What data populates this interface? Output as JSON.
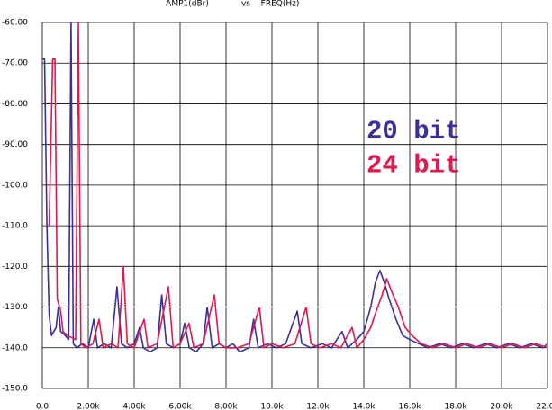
{
  "chart_data": {
    "type": "line",
    "ylabel": "AMP1(dBr)",
    "title": "vs",
    "xlabel": "FREQ(Hz)",
    "xlim": [
      0,
      22000
    ],
    "ylim": [
      -150,
      -60
    ],
    "xticks": [
      {
        "value": 0,
        "label": "0.0"
      },
      {
        "value": 2000,
        "label": "2.00k"
      },
      {
        "value": 4000,
        "label": "4.00k"
      },
      {
        "value": 6000,
        "label": "6.00k"
      },
      {
        "value": 8000,
        "label": "8.00k"
      },
      {
        "value": 10000,
        "label": "10.0k"
      },
      {
        "value": 12000,
        "label": "12.0k"
      },
      {
        "value": 14000,
        "label": "14.0k"
      },
      {
        "value": 16000,
        "label": "16.0k"
      },
      {
        "value": 18000,
        "label": "18.0k"
      },
      {
        "value": 20000,
        "label": "20.0k"
      },
      {
        "value": 22000,
        "label": "22.0k"
      }
    ],
    "yticks": [
      {
        "value": -60,
        "label": "-60.00"
      },
      {
        "value": -70,
        "label": "-70.00"
      },
      {
        "value": -80,
        "label": "-80.00"
      },
      {
        "value": -90,
        "label": "-90.00"
      },
      {
        "value": -100,
        "label": "-100.0"
      },
      {
        "value": -110,
        "label": "-110.0"
      },
      {
        "value": -120,
        "label": "-120.0"
      },
      {
        "value": -130,
        "label": "-130.0"
      },
      {
        "value": -140,
        "label": "-140.0"
      },
      {
        "value": -150,
        "label": "-150.0"
      }
    ],
    "grid": true,
    "series": [
      {
        "name": "20 bit",
        "color": "#3b2f98",
        "x": [
          0,
          100,
          200,
          300,
          400,
          600,
          700,
          800,
          1000,
          1150,
          1250,
          1350,
          1500,
          1750,
          2000,
          2240,
          2400,
          2700,
          3000,
          3250,
          3450,
          3700,
          4000,
          4230,
          4400,
          4700,
          5000,
          5200,
          5400,
          5700,
          6000,
          6200,
          6400,
          6700,
          7000,
          7180,
          7400,
          7700,
          8000,
          8300,
          8600,
          9000,
          9200,
          9400,
          9800,
          10200,
          10600,
          11100,
          11300,
          11700,
          12200,
          12600,
          13050,
          13300,
          13700,
          14000,
          14300,
          14500,
          14700,
          14900,
          15100,
          15400,
          15700,
          16000,
          16400,
          16800,
          17300,
          17800,
          18300,
          18800,
          19300,
          19800,
          20300,
          20800,
          21300,
          21800,
          22000
        ],
        "values": [
          -69,
          -69,
          -110,
          -132,
          -137,
          -135,
          -130,
          -136,
          -137,
          -138,
          -60,
          -139,
          -140,
          -139,
          -140,
          -133,
          -140,
          -139,
          -140,
          -125,
          -139,
          -140,
          -139,
          -135,
          -140,
          -141,
          -140,
          -127,
          -139,
          -140,
          -139,
          -134,
          -140,
          -141,
          -139,
          -130,
          -140,
          -139,
          -140,
          -139,
          -141,
          -140,
          -133,
          -140,
          -139,
          -140,
          -139,
          -131,
          -139,
          -140,
          -139,
          -140,
          -136,
          -140,
          -138,
          -136,
          -130,
          -124,
          -121,
          -124,
          -128,
          -133,
          -137,
          -138,
          -139,
          -140,
          -139,
          -140,
          -139,
          -140,
          -139,
          -140,
          -139,
          -140,
          -139,
          -140,
          -139
        ]
      },
      {
        "name": "24 bit",
        "color": "#e3174b",
        "x": [
          300,
          450,
          550,
          650,
          800,
          900,
          1100,
          1450,
          1570,
          1680,
          1900,
          2200,
          2470,
          2650,
          3000,
          3300,
          3530,
          3700,
          4000,
          4430,
          4600,
          5000,
          5490,
          5700,
          6000,
          6390,
          6600,
          7000,
          7490,
          7700,
          8000,
          8500,
          9000,
          9450,
          9650,
          10000,
          10500,
          11000,
          11490,
          11700,
          12100,
          12600,
          13000,
          13490,
          13700,
          14000,
          14300,
          14600,
          14800,
          15000,
          15200,
          15500,
          15800,
          16100,
          16500,
          17000,
          17500,
          18000,
          18500,
          19000,
          19500,
          20000,
          20500,
          21000,
          21500,
          22000
        ],
        "values": [
          -110,
          -69,
          -69,
          -128,
          -131,
          -136,
          -137,
          -138,
          -60,
          -139,
          -140,
          -139,
          -133,
          -140,
          -139,
          -140,
          -120,
          -139,
          -140,
          -133,
          -140,
          -139,
          -125,
          -140,
          -139,
          -134,
          -140,
          -139,
          -127,
          -139,
          -140,
          -140,
          -139,
          -130,
          -140,
          -139,
          -140,
          -139,
          -130,
          -139,
          -140,
          -139,
          -140,
          -135,
          -140,
          -138,
          -135,
          -130,
          -127,
          -123,
          -126,
          -130,
          -135,
          -137,
          -139,
          -140,
          -139,
          -140,
          -139,
          -140,
          -139,
          -140,
          -139,
          -140,
          -139,
          -140
        ]
      }
    ]
  }
}
